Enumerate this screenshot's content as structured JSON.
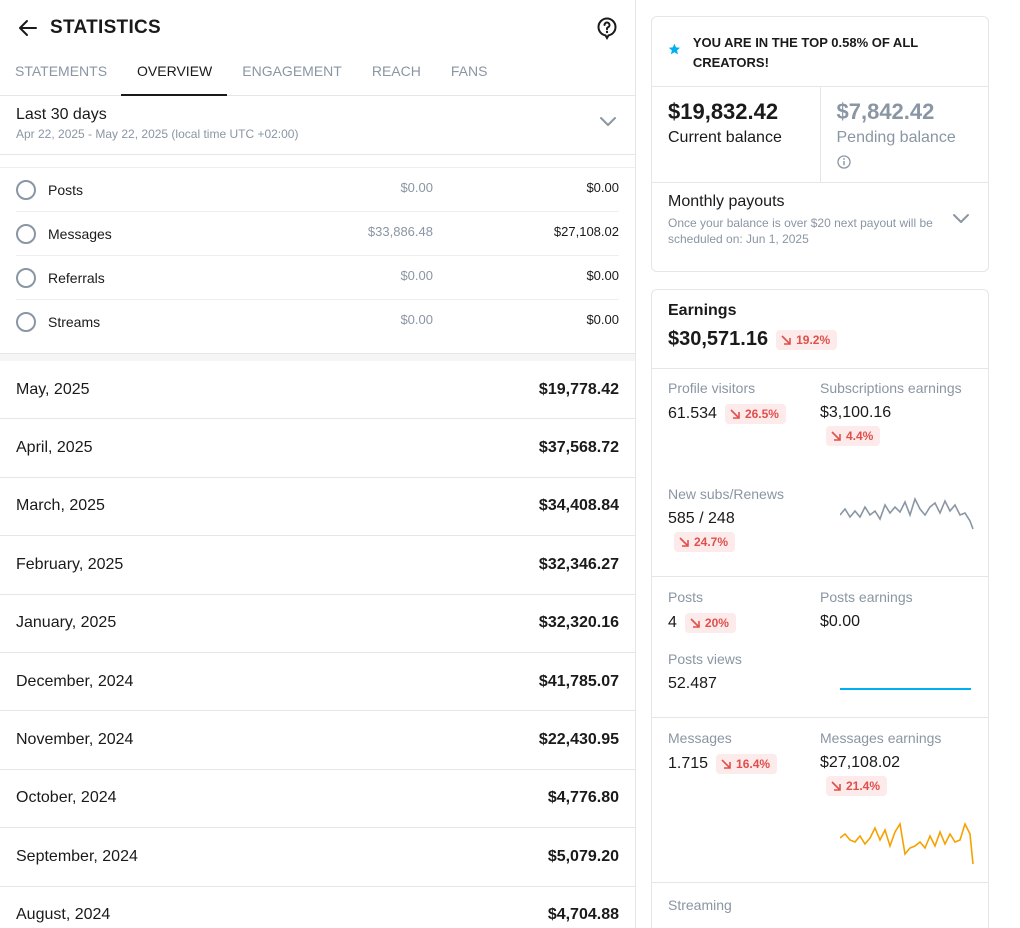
{
  "header": {
    "title": "STATISTICS"
  },
  "tabs": [
    {
      "label": "STATEMENTS",
      "active": false
    },
    {
      "label": "OVERVIEW",
      "active": true
    },
    {
      "label": "ENGAGEMENT",
      "active": false
    },
    {
      "label": "REACH",
      "active": false
    },
    {
      "label": "FANS",
      "active": false
    }
  ],
  "period": {
    "label": "Last 30 days",
    "range": "Apr 22, 2025 - May 22, 2025 (local time UTC +02:00)"
  },
  "filters": [
    {
      "label": "Posts",
      "gross": "$0.00",
      "net": "$0.00"
    },
    {
      "label": "Messages",
      "gross": "$33,886.48",
      "net": "$27,108.02"
    },
    {
      "label": "Referrals",
      "gross": "$0.00",
      "net": "$0.00"
    },
    {
      "label": "Streams",
      "gross": "$0.00",
      "net": "$0.00"
    }
  ],
  "months": [
    {
      "name": "May, 2025",
      "value": "$19,778.42"
    },
    {
      "name": "April, 2025",
      "value": "$37,568.72"
    },
    {
      "name": "March, 2025",
      "value": "$34,408.84"
    },
    {
      "name": "February, 2025",
      "value": "$32,346.27"
    },
    {
      "name": "January, 2025",
      "value": "$32,320.16"
    },
    {
      "name": "December, 2024",
      "value": "$41,785.07"
    },
    {
      "name": "November, 2024",
      "value": "$22,430.95"
    },
    {
      "name": "October, 2024",
      "value": "$4,776.80"
    },
    {
      "name": "September, 2024",
      "value": "$5,079.20"
    },
    {
      "name": "August, 2024",
      "value": "$4,704.88"
    }
  ],
  "banner": {
    "text": "YOU ARE IN THE TOP 0.58% OF ALL CREATORS!"
  },
  "balance": {
    "current_amount": "$19,832.42",
    "current_label": "Current balance",
    "pending_amount": "$7,842.42",
    "pending_label": "Pending balance"
  },
  "payouts": {
    "title": "Monthly payouts",
    "subtitle": "Once your balance is over $20 next payout will be scheduled on: Jun 1, 2025"
  },
  "earnings": {
    "title": "Earnings",
    "total": "$30,571.16",
    "total_change": "19.2%",
    "profile_visitors_label": "Profile visitors",
    "profile_visitors": "61.534",
    "profile_visitors_change": "26.5%",
    "subs_earnings_label": "Subscriptions earnings",
    "subs_earnings": "$3,100.16",
    "subs_earnings_change": "4.4%",
    "new_subs_label": "New subs/Renews",
    "new_subs": "585 / 248",
    "new_subs_change": "24.7%",
    "posts_label": "Posts",
    "posts": "4",
    "posts_change": "20%",
    "posts_earnings_label": "Posts earnings",
    "posts_earnings": "$0.00",
    "posts_views_label": "Posts views",
    "posts_views": "52.487",
    "messages_label": "Messages",
    "messages": "1.715",
    "messages_change": "16.4%",
    "messages_earnings_label": "Messages earnings",
    "messages_earnings": "$27,108.02",
    "messages_earnings_change": "21.4%",
    "streaming_label": "Streaming"
  },
  "colors": {
    "accent_blue": "#00aff0",
    "down_red": "#e0504b",
    "down_bg": "#fdeaea",
    "muted": "#8a96a3",
    "spark_gray": "#8a96a3",
    "spark_orange": "#f5a200"
  },
  "icons": [
    "back-arrow-icon",
    "help-icon",
    "chevron-down-icon",
    "star-icon",
    "info-icon",
    "trend-down-icon"
  ]
}
